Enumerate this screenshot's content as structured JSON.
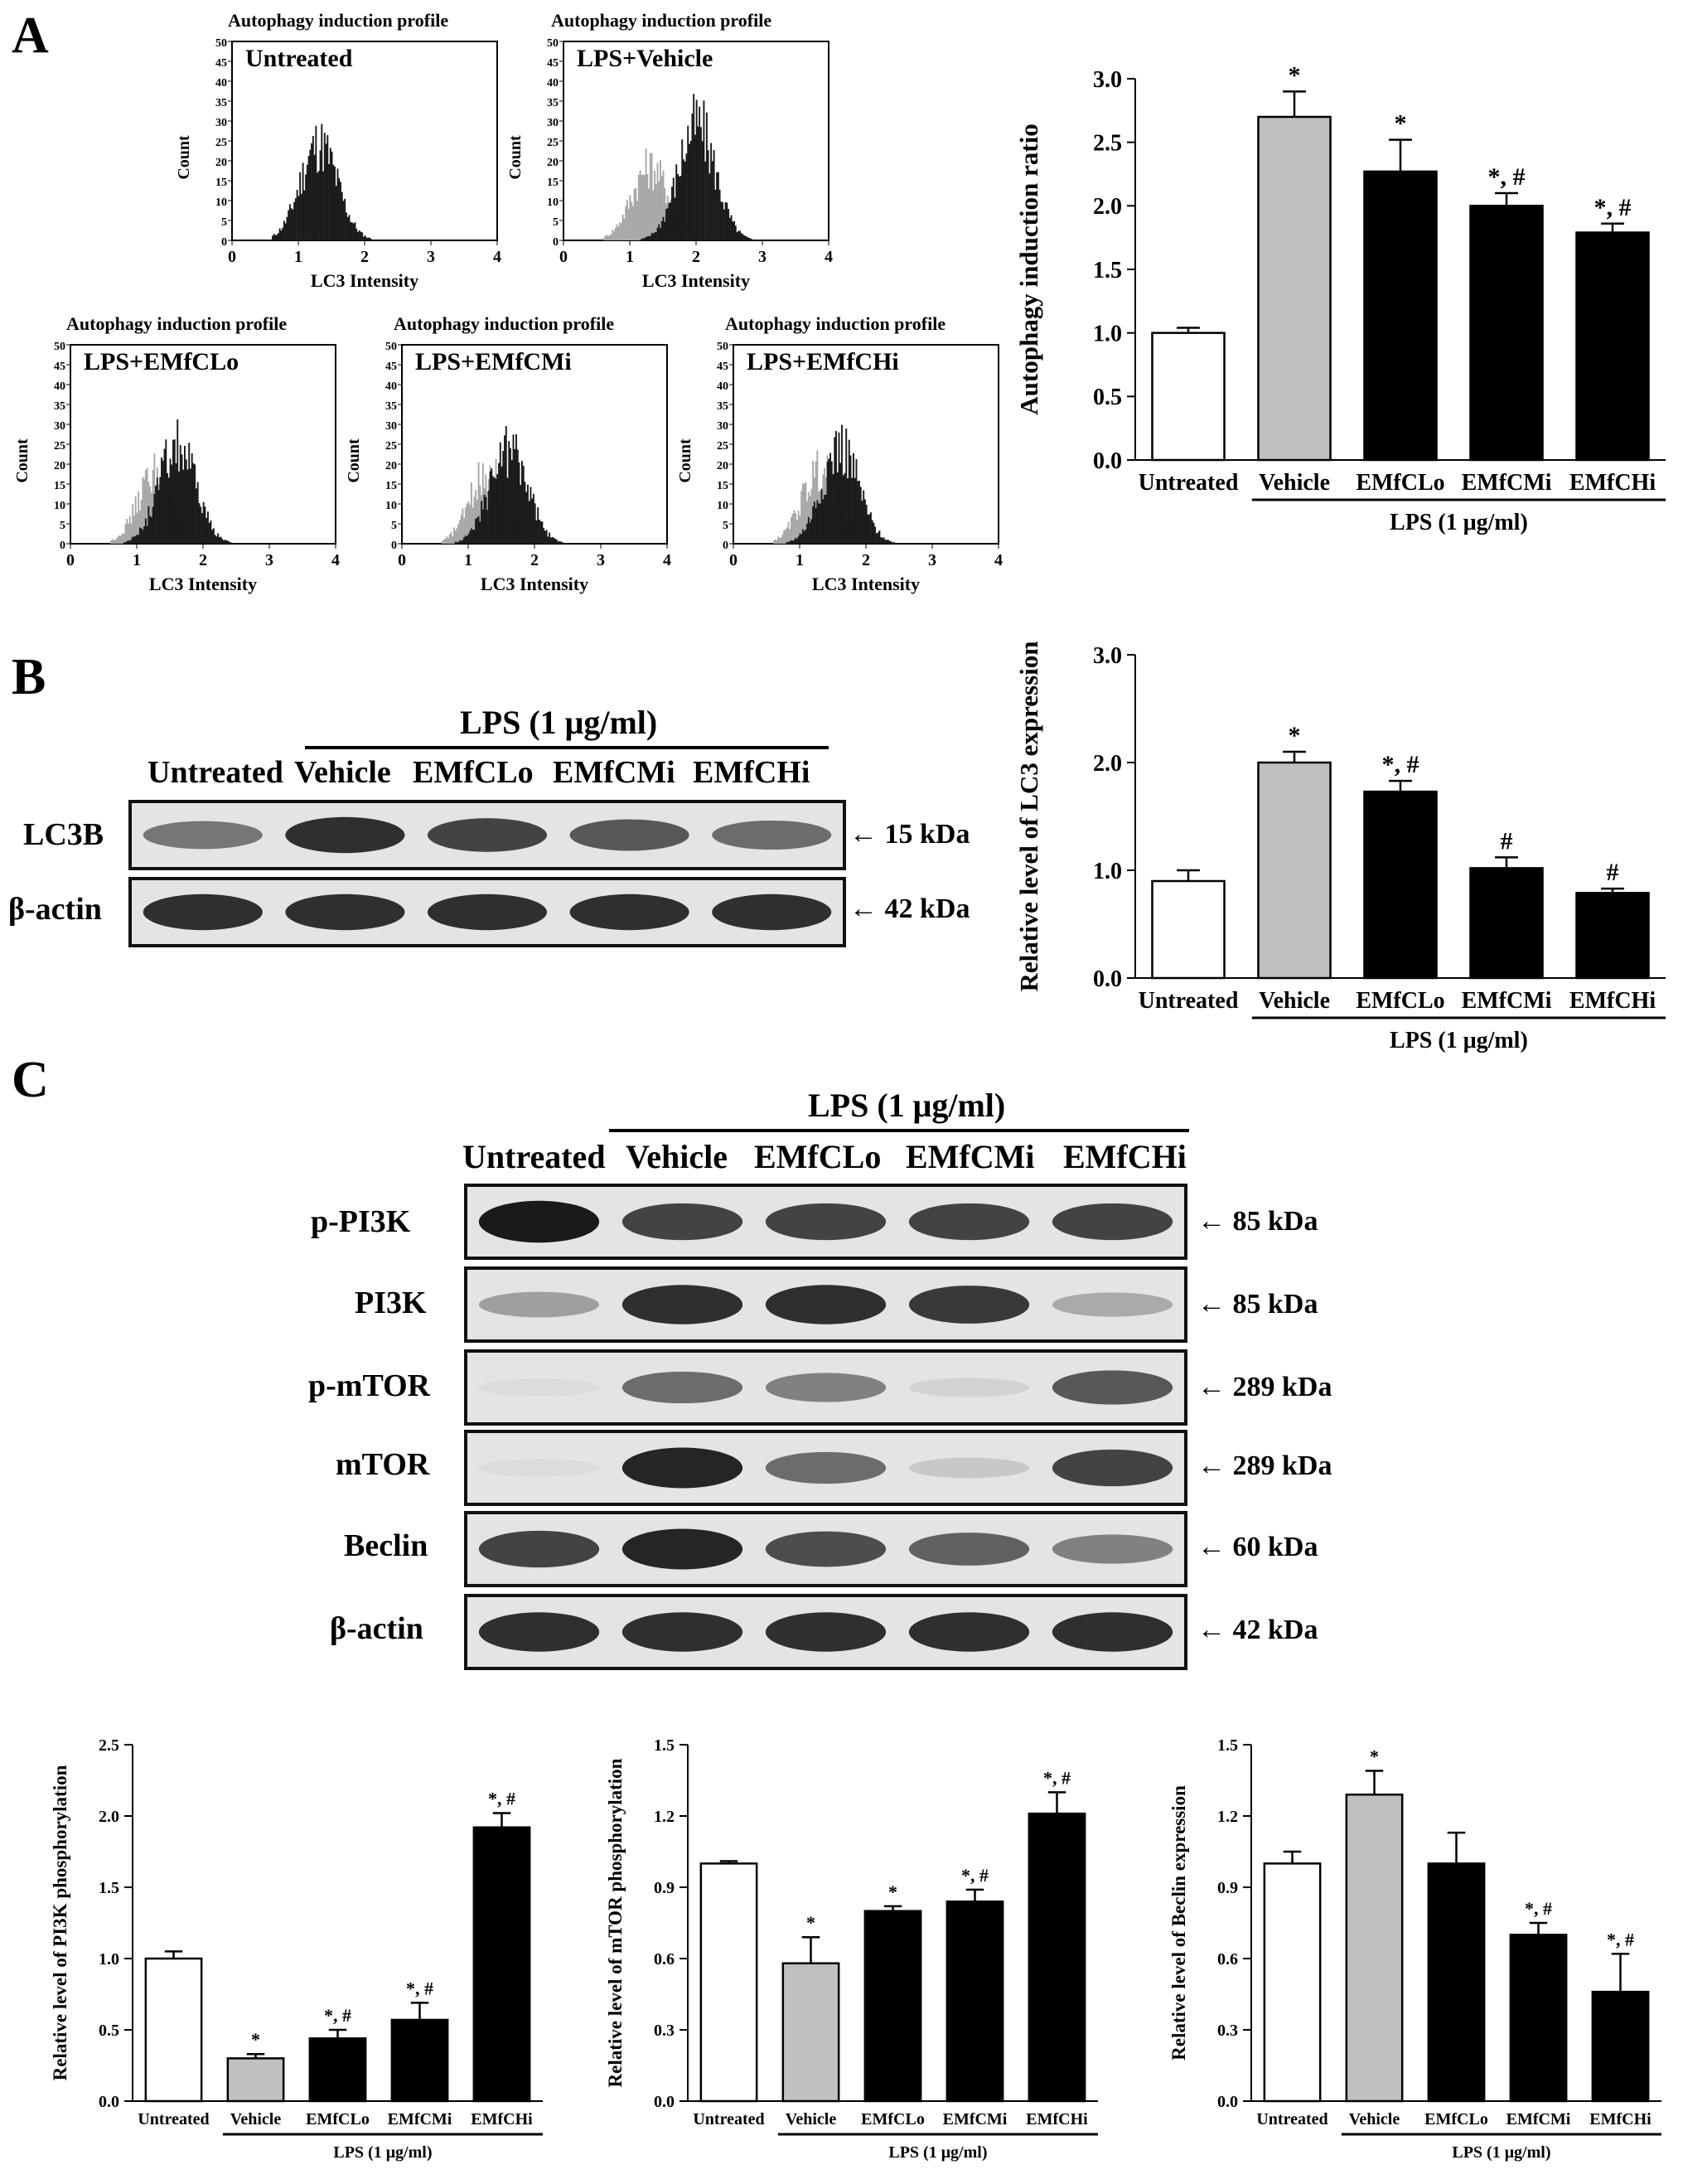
{
  "panels": {
    "a": "A",
    "b": "B",
    "c": "C"
  },
  "histograms": [
    {
      "title": "Autophagy induction profile",
      "label": "Untreated",
      "ylabel": "Count",
      "xlabel": "LC3 Intensity",
      "peak": 1.3,
      "ref": false
    },
    {
      "title": "Autophagy induction profile",
      "label": "LPS+Vehicle",
      "ylabel": "Count",
      "xlabel": "LC3 Intensity",
      "peak": 2.0,
      "ref": true
    },
    {
      "title": "Autophagy induction profile",
      "label": "LPS+EMfCLo",
      "ylabel": "Count",
      "xlabel": "LC3 Intensity",
      "peak": 1.6,
      "ref": true
    },
    {
      "title": "Autophagy induction profile",
      "label": "LPS+EMfCMi",
      "ylabel": "Count",
      "xlabel": "LC3 Intensity",
      "peak": 1.6,
      "ref": true
    },
    {
      "title": "Autophagy induction profile",
      "label": "LPS+EMfCHi",
      "ylabel": "Count",
      "xlabel": "LC3 Intensity",
      "peak": 1.6,
      "ref": true
    }
  ],
  "hist_axes": {
    "x_ticks": [
      "0",
      "1",
      "2",
      "3",
      "4"
    ],
    "y_ticks": [
      "0",
      "5",
      "10",
      "15",
      "20",
      "25",
      "30",
      "35",
      "40",
      "45",
      "50"
    ]
  },
  "blot_b": {
    "header": "LPS (1 μg/ml)",
    "lanes": [
      "Untreated",
      "Vehicle",
      "EMfCLo",
      "EMfCMi",
      "EMfCHi"
    ],
    "rows": [
      {
        "label": "LC3B",
        "kda": "15 kDa"
      },
      {
        "label": "β-actin",
        "kda": "42 kDa"
      }
    ]
  },
  "blot_c": {
    "header": "LPS (1 μg/ml)",
    "lanes": [
      "Untreated",
      "Vehicle",
      "EMfCLo",
      "EMfCMi",
      "EMfCHi"
    ],
    "rows": [
      {
        "label": "p-PI3K",
        "kda": "85 kDa"
      },
      {
        "label": "PI3K",
        "kda": "85 kDa"
      },
      {
        "label": "p-mTOR",
        "kda": "289 kDa"
      },
      {
        "label": "mTOR",
        "kda": "289 kDa"
      },
      {
        "label": "Beclin",
        "kda": "60 kDa"
      },
      {
        "label": "β-actin",
        "kda": "42 kDa"
      }
    ]
  },
  "band_intensity": [
    [
      1.0,
      0.8,
      0.8,
      0.8,
      0.8
    ],
    [
      0.35,
      0.9,
      0.9,
      0.85,
      0.3
    ],
    [
      0.05,
      0.6,
      0.5,
      0.1,
      0.7
    ],
    [
      0.05,
      0.95,
      0.6,
      0.15,
      0.8
    ],
    [
      0.8,
      0.95,
      0.75,
      0.65,
      0.5
    ],
    [
      0.9,
      0.9,
      0.9,
      0.9,
      0.9
    ]
  ],
  "band_intensity_b": [
    [
      0.55,
      0.9,
      0.8,
      0.7,
      0.6
    ],
    [
      0.9,
      0.9,
      0.9,
      0.9,
      0.9
    ]
  ],
  "colors": {
    "untreated": "#ffffff",
    "vehicle": "#c0c0c0",
    "treated": "#000000",
    "hist_dark": "#1a1a1a",
    "hist_light": "#a8a8a8"
  },
  "chart_data": [
    {
      "type": "bar",
      "ylabel": "Autophagy induction ratio",
      "categories": [
        "Untreated",
        "Vehicle",
        "EMfCLo",
        "EMfCMi",
        "EMfCHi"
      ],
      "values": [
        1.0,
        2.7,
        2.27,
        2.0,
        1.79
      ],
      "errors": [
        0.04,
        0.2,
        0.25,
        0.1,
        0.07
      ],
      "annotations": [
        "",
        "*",
        "*",
        "*, #",
        "*, #"
      ],
      "ylim": [
        0,
        3.0
      ],
      "yticks": [
        "0.0",
        "0.5",
        "1.0",
        "1.5",
        "2.0",
        "2.5",
        "3.0"
      ],
      "group_label": "LPS (1 μg/ml)"
    },
    {
      "type": "bar",
      "ylabel": "Relative level of LC3 expression",
      "categories": [
        "Untreated",
        "Vehicle",
        "EMfCLo",
        "EMfCMi",
        "EMfCHi"
      ],
      "values": [
        0.9,
        2.0,
        1.73,
        1.02,
        0.79
      ],
      "errors": [
        0.1,
        0.1,
        0.1,
        0.1,
        0.04
      ],
      "annotations": [
        "",
        "*",
        "*, #",
        "#",
        "#"
      ],
      "ylim": [
        0,
        3.0
      ],
      "yticks": [
        "0.0",
        "1.0",
        "2.0",
        "3.0"
      ],
      "group_label": "LPS (1 μg/ml)"
    },
    {
      "type": "bar",
      "ylabel": "Relative level of PI3K phosphorylation",
      "categories": [
        "Untreated",
        "Vehicle",
        "EMfCLo",
        "EMfCMi",
        "EMfCHi"
      ],
      "values": [
        1.0,
        0.3,
        0.44,
        0.57,
        1.92
      ],
      "errors": [
        0.05,
        0.03,
        0.06,
        0.12,
        0.1
      ],
      "annotations": [
        "",
        "*",
        "*, #",
        "*, #",
        "*, #"
      ],
      "ylim": [
        0,
        2.5
      ],
      "yticks": [
        "0.0",
        "0.5",
        "1.0",
        "1.5",
        "2.0",
        "2.5"
      ],
      "group_label": "LPS (1 μg/ml)"
    },
    {
      "type": "bar",
      "ylabel": "Relative level of mTOR phosphorylation",
      "categories": [
        "Untreated",
        "Vehicle",
        "EMfCLo",
        "EMfCMi",
        "EMfCHi"
      ],
      "values": [
        1.0,
        0.58,
        0.8,
        0.84,
        1.21
      ],
      "errors": [
        0.01,
        0.11,
        0.02,
        0.05,
        0.09
      ],
      "annotations": [
        "",
        "*",
        "*",
        "*, #",
        "*, #"
      ],
      "ylim": [
        0,
        1.5
      ],
      "yticks": [
        "0.0",
        "0.3",
        "0.6",
        "0.9",
        "1.2",
        "1.5"
      ],
      "group_label": "LPS (1 μg/ml)"
    },
    {
      "type": "bar",
      "ylabel": "Relative level of Beclin expression",
      "categories": [
        "Untreated",
        "Vehicle",
        "EMfCLo",
        "EMfCMi",
        "EMfCHi"
      ],
      "values": [
        1.0,
        1.29,
        1.0,
        0.7,
        0.46
      ],
      "errors": [
        0.05,
        0.1,
        0.13,
        0.05,
        0.16
      ],
      "annotations": [
        "",
        "*",
        "",
        "*, #",
        "*, #"
      ],
      "ylim": [
        0,
        1.5
      ],
      "yticks": [
        "0.0",
        "0.3",
        "0.6",
        "0.9",
        "1.2",
        "1.5"
      ],
      "group_label": "LPS (1 μg/ml)"
    }
  ]
}
